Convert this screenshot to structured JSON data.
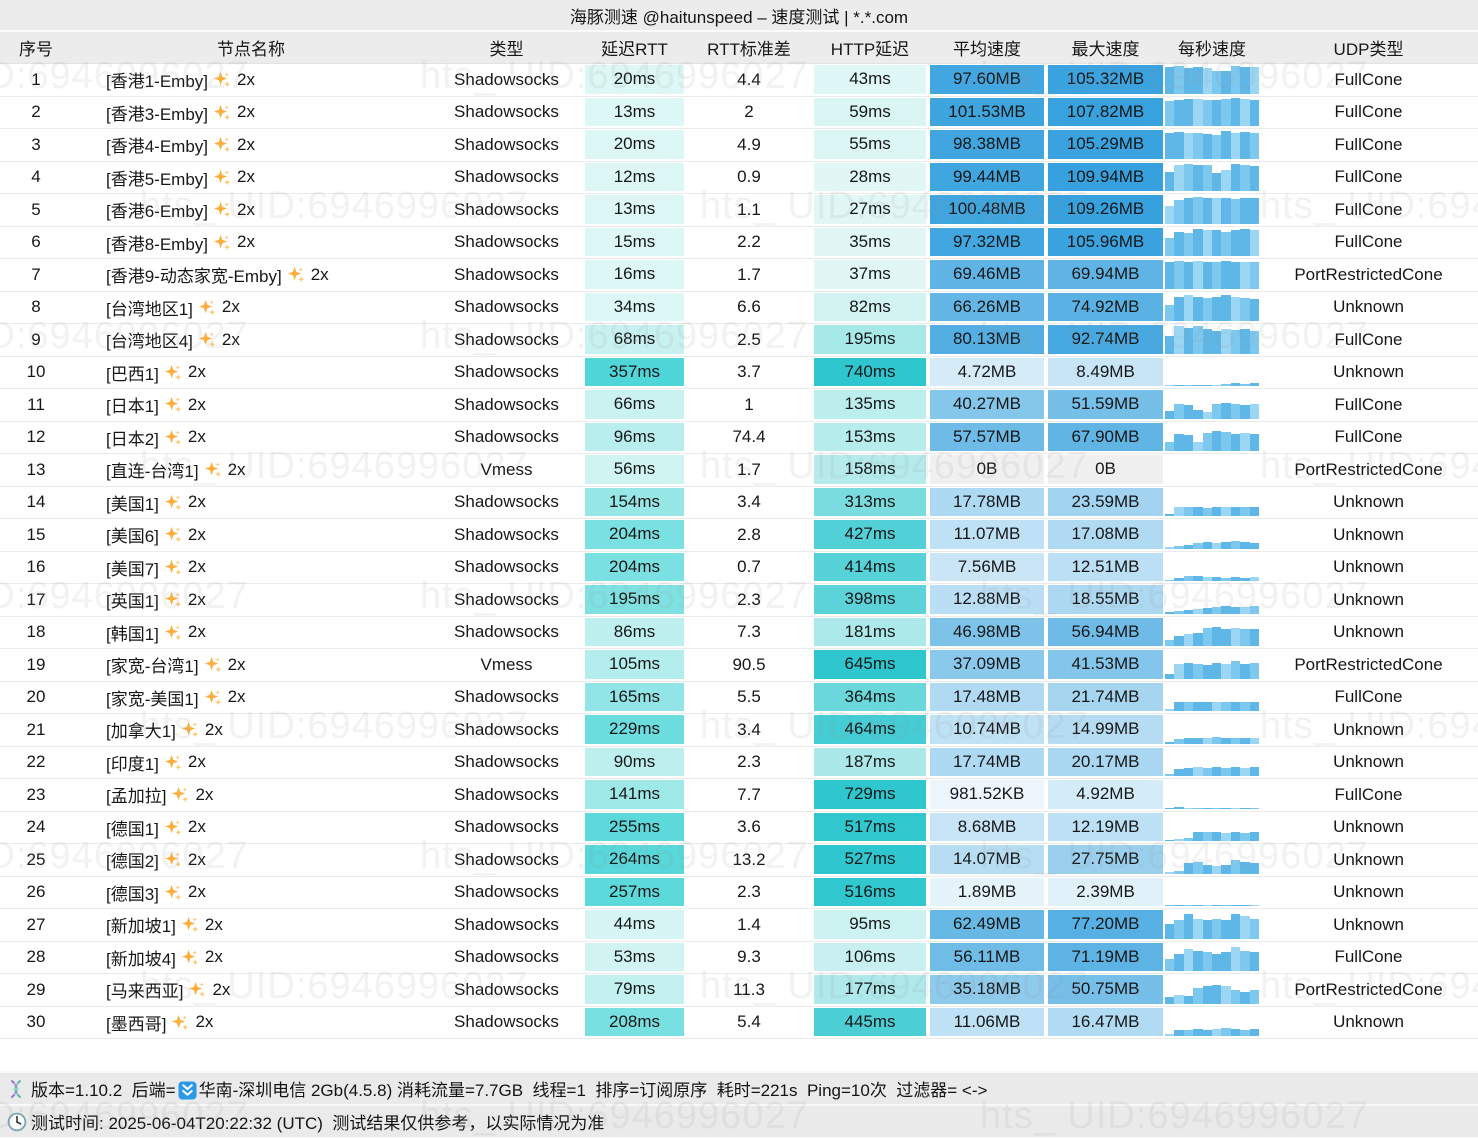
{
  "title": "海豚测速 @haitunspeed – 速度测试 | *.*.com",
  "watermark_text": "hts_ UID:6946996027",
  "columns": [
    "序号",
    "节点名称",
    "类型",
    "延迟RTT",
    "RTT标准差",
    "HTTP延迟",
    "平均速度",
    "最大速度",
    "每秒速度",
    "UDP类型"
  ],
  "palette": {
    "header_bg": "#ececec",
    "footer_bg": "#eaeaea",
    "latency_base": "#effbf9",
    "rtt_max_color": "#4fd6d8",
    "http_max_color": "#2fc7cf",
    "speed_max_color": "#36a1de",
    "zero_speed_bg": "#f0f0f0",
    "bar_shades": [
      "#5fb7e7",
      "#7cc8ef",
      "#9bd7f4"
    ],
    "sparkle_color": "#FFAE3D"
  },
  "rows": [
    {
      "no": "1",
      "name": "[香港1-Emby]",
      "x": "2x",
      "type": "Shadowsocks",
      "rtt": "20ms",
      "std": "4.4",
      "http": "43ms",
      "avg": "97.60MB",
      "max": "105.32MB",
      "udp": "FullCone",
      "bars": [
        0.92,
        0.95,
        0.9,
        0.93,
        0.9,
        0.78,
        0.8,
        0.96,
        0.92,
        0.94
      ]
    },
    {
      "no": "2",
      "name": "[香港3-Emby]",
      "x": "2x",
      "type": "Shadowsocks",
      "rtt": "13ms",
      "std": "2",
      "http": "59ms",
      "avg": "101.53MB",
      "max": "107.82MB",
      "udp": "FullCone",
      "bars": [
        0.88,
        0.92,
        0.96,
        0.95,
        0.9,
        0.93,
        0.96,
        1,
        0.96,
        0.92
      ]
    },
    {
      "no": "3",
      "name": "[香港4-Emby]",
      "x": "2x",
      "type": "Shadowsocks",
      "rtt": "20ms",
      "std": "4.9",
      "http": "55ms",
      "avg": "98.38MB",
      "max": "105.29MB",
      "udp": "FullCone",
      "bars": [
        0.9,
        0.93,
        0.89,
        0.91,
        0.86,
        0.82,
        0.95,
        0.9,
        0.92,
        0.88
      ]
    },
    {
      "no": "4",
      "name": "[香港5-Emby]",
      "x": "2x",
      "type": "Shadowsocks",
      "rtt": "12ms",
      "std": "0.9",
      "http": "28ms",
      "avg": "99.44MB",
      "max": "109.94MB",
      "udp": "FullCone",
      "bars": [
        0.65,
        0.92,
        0.95,
        0.9,
        0.93,
        0.62,
        0.72,
        0.96,
        0.9,
        0.88
      ]
    },
    {
      "no": "5",
      "name": "[香港6-Emby]",
      "x": "2x",
      "type": "Shadowsocks",
      "rtt": "13ms",
      "std": "1.1",
      "http": "27ms",
      "avg": "100.48MB",
      "max": "109.26MB",
      "udp": "FullCone",
      "bars": [
        0.6,
        0.82,
        0.9,
        0.93,
        0.9,
        0.88,
        0.9,
        0.86,
        0.9,
        0.9
      ]
    },
    {
      "no": "6",
      "name": "[香港8-Emby]",
      "x": "2x",
      "type": "Shadowsocks",
      "rtt": "15ms",
      "std": "2.2",
      "http": "35ms",
      "avg": "97.32MB",
      "max": "105.96MB",
      "udp": "FullCone",
      "bars": [
        0.62,
        0.86,
        0.82,
        0.95,
        0.9,
        0.92,
        0.86,
        0.9,
        0.95,
        0.9
      ]
    },
    {
      "no": "7",
      "name": "[香港9-动态家宽-Emby]",
      "x": "2x",
      "type": "Shadowsocks",
      "rtt": "16ms",
      "std": "1.7",
      "http": "37ms",
      "avg": "69.46MB",
      "max": "69.94MB",
      "udp": "PortRestrictedCone",
      "bars": [
        0.93,
        0.95,
        0.94,
        0.95,
        0.93,
        0.94,
        0.95,
        0.94,
        0.93,
        0.94
      ]
    },
    {
      "no": "8",
      "name": "[台湾地区1]",
      "x": "2x",
      "type": "Shadowsocks",
      "rtt": "34ms",
      "std": "6.6",
      "http": "82ms",
      "avg": "66.26MB",
      "max": "74.92MB",
      "udp": "Unknown",
      "bars": [
        0.55,
        0.86,
        0.9,
        0.86,
        0.82,
        0.85,
        0.9,
        0.85,
        0.8,
        0.76
      ]
    },
    {
      "no": "9",
      "name": "[台湾地区4]",
      "x": "2x",
      "type": "Shadowsocks",
      "rtt": "68ms",
      "std": "2.5",
      "http": "195ms",
      "avg": "80.13MB",
      "max": "92.74MB",
      "udp": "FullCone",
      "bars": [
        0.62,
        0.95,
        0.9,
        0.95,
        0.86,
        0.8,
        0.86,
        0.82,
        0.86,
        0.8
      ]
    },
    {
      "no": "10",
      "name": "[巴西1]",
      "x": "2x",
      "type": "Shadowsocks",
      "rtt": "357ms",
      "std": "3.7",
      "http": "740ms",
      "avg": "4.72MB",
      "max": "8.49MB",
      "udp": "Unknown",
      "bars": [
        0.04,
        0.03,
        0.05,
        0.04,
        0.03,
        0.05,
        0.08,
        0.1,
        0.06,
        0.09
      ]
    },
    {
      "no": "11",
      "name": "[日本1]",
      "x": "2x",
      "type": "Shadowsocks",
      "rtt": "66ms",
      "std": "1",
      "http": "135ms",
      "avg": "40.27MB",
      "max": "51.59MB",
      "udp": "FullCone",
      "bars": [
        0.28,
        0.52,
        0.46,
        0.3,
        0.22,
        0.52,
        0.56,
        0.5,
        0.48,
        0.5
      ]
    },
    {
      "no": "12",
      "name": "[日本2]",
      "x": "2x",
      "type": "Shadowsocks",
      "rtt": "96ms",
      "std": "74.4",
      "http": "153ms",
      "avg": "57.57MB",
      "max": "67.90MB",
      "udp": "FullCone",
      "bars": [
        0.3,
        0.58,
        0.55,
        0.32,
        0.62,
        0.7,
        0.66,
        0.6,
        0.64,
        0.6
      ]
    },
    {
      "no": "13",
      "name": "[直连-台湾1]",
      "x": "2x",
      "type": "Vmess",
      "rtt": "56ms",
      "std": "1.7",
      "http": "158ms",
      "avg": "0B",
      "max": "0B",
      "udp": "PortRestrictedCone",
      "bars": [
        0,
        0,
        0,
        0,
        0,
        0,
        0,
        0,
        0,
        0
      ]
    },
    {
      "no": "14",
      "name": "[美国1]",
      "x": "2x",
      "type": "Shadowsocks",
      "rtt": "154ms",
      "std": "3.4",
      "http": "313ms",
      "avg": "17.78MB",
      "max": "23.59MB",
      "udp": "Unknown",
      "bars": [
        0.06,
        0.3,
        0.32,
        0.3,
        0.28,
        0.3,
        0.32,
        0.3,
        0.32,
        0.3
      ]
    },
    {
      "no": "15",
      "name": "[美国6]",
      "x": "2x",
      "type": "Shadowsocks",
      "rtt": "204ms",
      "std": "2.8",
      "http": "427ms",
      "avg": "11.07MB",
      "max": "17.08MB",
      "udp": "Unknown",
      "bars": [
        0.04,
        0.1,
        0.14,
        0.2,
        0.22,
        0.2,
        0.22,
        0.25,
        0.22,
        0.2
      ]
    },
    {
      "no": "16",
      "name": "[美国7]",
      "x": "2x",
      "type": "Shadowsocks",
      "rtt": "204ms",
      "std": "0.7",
      "http": "414ms",
      "avg": "7.56MB",
      "max": "12.51MB",
      "udp": "Unknown",
      "bars": [
        0.03,
        0.1,
        0.16,
        0.18,
        0.15,
        0.13,
        0.12,
        0.13,
        0.12,
        0.15
      ]
    },
    {
      "no": "17",
      "name": "[英国1]",
      "x": "2x",
      "type": "Shadowsocks",
      "rtt": "195ms",
      "std": "2.3",
      "http": "398ms",
      "avg": "12.88MB",
      "max": "18.55MB",
      "udp": "Unknown",
      "bars": [
        0.04,
        0.08,
        0.12,
        0.16,
        0.2,
        0.22,
        0.25,
        0.24,
        0.22,
        0.25
      ]
    },
    {
      "no": "18",
      "name": "[韩国1]",
      "x": "2x",
      "type": "Shadowsocks",
      "rtt": "86ms",
      "std": "7.3",
      "http": "181ms",
      "avg": "46.98MB",
      "max": "56.94MB",
      "udp": "Unknown",
      "bars": [
        0.2,
        0.36,
        0.42,
        0.46,
        0.62,
        0.66,
        0.6,
        0.62,
        0.6,
        0.6
      ]
    },
    {
      "no": "19",
      "name": "[家宽-台湾1]",
      "x": "2x",
      "type": "Vmess",
      "rtt": "105ms",
      "std": "90.5",
      "http": "645ms",
      "avg": "37.09MB",
      "max": "41.53MB",
      "udp": "PortRestrictedCone",
      "bars": [
        0.16,
        0.5,
        0.55,
        0.5,
        0.46,
        0.55,
        0.5,
        0.6,
        0.52,
        0.55
      ]
    },
    {
      "no": "20",
      "name": "[家宽-美国1]",
      "x": "2x",
      "type": "Shadowsocks",
      "rtt": "165ms",
      "std": "5.5",
      "http": "364ms",
      "avg": "17.48MB",
      "max": "21.74MB",
      "udp": "FullCone",
      "bars": [
        0.06,
        0.3,
        0.3,
        0.32,
        0.3,
        0.3,
        0.32,
        0.3,
        0.3,
        0.3
      ]
    },
    {
      "no": "21",
      "name": "[加拿大1]",
      "x": "2x",
      "type": "Shadowsocks",
      "rtt": "229ms",
      "std": "3.4",
      "http": "464ms",
      "avg": "10.74MB",
      "max": "14.99MB",
      "udp": "Unknown",
      "bars": [
        0.04,
        0.16,
        0.18,
        0.2,
        0.18,
        0.22,
        0.2,
        0.18,
        0.2,
        0.18
      ]
    },
    {
      "no": "22",
      "name": "[印度1]",
      "x": "2x",
      "type": "Shadowsocks",
      "rtt": "90ms",
      "std": "2.3",
      "http": "187ms",
      "avg": "17.74MB",
      "max": "20.17MB",
      "udp": "Unknown",
      "bars": [
        0.06,
        0.26,
        0.28,
        0.3,
        0.28,
        0.3,
        0.28,
        0.3,
        0.28,
        0.3
      ]
    },
    {
      "no": "23",
      "name": "[孟加拉]",
      "x": "2x",
      "type": "Shadowsocks",
      "rtt": "141ms",
      "std": "7.7",
      "http": "729ms",
      "avg": "981.52KB",
      "max": "4.92MB",
      "udp": "FullCone",
      "bars": [
        0.03,
        0.05,
        0.02,
        0.02,
        0.02,
        0.02,
        0.02,
        0.02,
        0.02,
        0.02
      ]
    },
    {
      "no": "24",
      "name": "[德国1]",
      "x": "2x",
      "type": "Shadowsocks",
      "rtt": "255ms",
      "std": "3.6",
      "http": "517ms",
      "avg": "8.68MB",
      "max": "12.19MB",
      "udp": "Unknown",
      "bars": [
        0.03,
        0.06,
        0.12,
        0.3,
        0.3,
        0.3,
        0.28,
        0.3,
        0.28,
        0.3
      ]
    },
    {
      "no": "25",
      "name": "[德国2]",
      "x": "2x",
      "type": "Shadowsocks",
      "rtt": "264ms",
      "std": "13.2",
      "http": "527ms",
      "avg": "14.07MB",
      "max": "27.75MB",
      "udp": "Unknown",
      "bars": [
        0.05,
        0.1,
        0.36,
        0.4,
        0.3,
        0.28,
        0.3,
        0.46,
        0.4,
        0.38
      ]
    },
    {
      "no": "26",
      "name": "[德国3]",
      "x": "2x",
      "type": "Shadowsocks",
      "rtt": "257ms",
      "std": "2.3",
      "http": "516ms",
      "avg": "1.89MB",
      "max": "2.39MB",
      "udp": "Unknown",
      "bars": [
        0.02,
        0.04,
        0.03,
        0.03,
        0.02,
        0.03,
        0.02,
        0.03,
        0.03,
        0.02
      ]
    },
    {
      "no": "27",
      "name": "[新加坡1]",
      "x": "2x",
      "type": "Shadowsocks",
      "rtt": "44ms",
      "std": "1.4",
      "http": "95ms",
      "avg": "62.49MB",
      "max": "77.20MB",
      "udp": "Unknown",
      "bars": [
        0.5,
        0.66,
        0.86,
        0.7,
        0.66,
        0.7,
        0.66,
        0.86,
        0.8,
        0.7
      ]
    },
    {
      "no": "28",
      "name": "[新加坡4]",
      "x": "2x",
      "type": "Shadowsocks",
      "rtt": "53ms",
      "std": "9.3",
      "http": "106ms",
      "avg": "56.11MB",
      "max": "71.19MB",
      "udp": "FullCone",
      "bars": [
        0.42,
        0.6,
        0.76,
        0.7,
        0.66,
        0.6,
        0.66,
        0.86,
        0.7,
        0.66
      ]
    },
    {
      "no": "29",
      "name": "[马来西亚]",
      "x": "2x",
      "type": "Shadowsocks",
      "rtt": "79ms",
      "std": "11.3",
      "http": "177ms",
      "avg": "35.18MB",
      "max": "50.75MB",
      "udp": "PortRestrictedCone",
      "bars": [
        0.22,
        0.3,
        0.26,
        0.56,
        0.6,
        0.66,
        0.6,
        0.46,
        0.4,
        0.46
      ]
    },
    {
      "no": "30",
      "name": "[墨西哥]",
      "x": "2x",
      "type": "Shadowsocks",
      "rtt": "208ms",
      "std": "5.4",
      "http": "445ms",
      "avg": "11.06MB",
      "max": "16.47MB",
      "udp": "Unknown",
      "bars": [
        0.06,
        0.2,
        0.22,
        0.25,
        0.22,
        0.25,
        0.28,
        0.25,
        0.22,
        0.25
      ]
    }
  ],
  "footer": {
    "line1_prefix": "版本=1.10.2  后端=",
    "line1_suffix": "华南-深圳电信 2Gb(4.5.8) 消耗流量=7.7GB  线程=1  排序=订阅原序  耗时=221s  Ping=10次  过滤器= <->",
    "line2": "测试时间: 2025-06-04T20:22:32 (UTC)  测试结果仅供参考，以实际情况为准"
  }
}
